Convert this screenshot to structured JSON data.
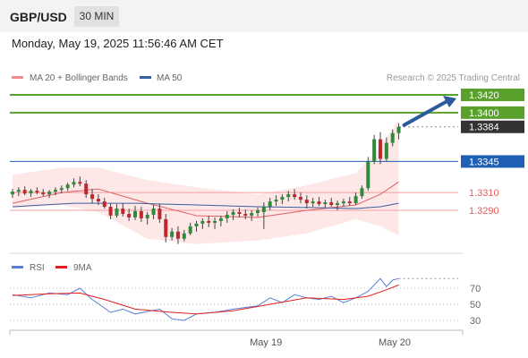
{
  "header": {
    "symbol": "GBP/USD",
    "timeframe": "30 MIN",
    "datetime": "Monday, May 19, 2025 11:56:46 AM CET"
  },
  "legend": {
    "bollinger": {
      "label": "MA 20 + Bollinger Bands",
      "color": "#f48a8a"
    },
    "ma50": {
      "label": "MA 50",
      "color": "#3a5f9e"
    },
    "copyright": "Research © 2025 Trading Central"
  },
  "rsi_legend": {
    "rsi": {
      "label": "RSI",
      "color": "#5b7fd6"
    },
    "ma9": {
      "label": "9MA",
      "color": "#e02020"
    }
  },
  "colors": {
    "green": "#5aa02c",
    "blue": "#1f5fb4",
    "red": "#e06060",
    "bull": "#2f8a3a",
    "bear": "#c0272d",
    "current": "#333333",
    "arrow": "#2b5a9a"
  },
  "chart_data": {
    "type": "candlestick",
    "price_levels": [
      {
        "value": 1.342,
        "label": "1.3420",
        "kind": "target"
      },
      {
        "value": 1.34,
        "label": "1.3400",
        "kind": "target"
      },
      {
        "value": 1.3384,
        "label": "1.3384",
        "kind": "current"
      },
      {
        "value": 1.3345,
        "label": "1.3345",
        "kind": "pivot"
      },
      {
        "value": 1.331,
        "label": "1.3310",
        "kind": "support"
      },
      {
        "value": 1.329,
        "label": "1.3290",
        "kind": "support"
      }
    ],
    "ohlc": [
      [
        1.3308,
        1.3314,
        1.3304,
        1.3311
      ],
      [
        1.3311,
        1.3316,
        1.3306,
        1.3313
      ],
      [
        1.3313,
        1.3317,
        1.3307,
        1.3309
      ],
      [
        1.3309,
        1.3314,
        1.3305,
        1.3312
      ],
      [
        1.3312,
        1.3316,
        1.3308,
        1.331
      ],
      [
        1.331,
        1.3314,
        1.3306,
        1.3308
      ],
      [
        1.3308,
        1.3313,
        1.3304,
        1.3311
      ],
      [
        1.3311,
        1.3316,
        1.3307,
        1.3313
      ],
      [
        1.3313,
        1.3318,
        1.3309,
        1.3315
      ],
      [
        1.3315,
        1.3321,
        1.3312,
        1.3319
      ],
      [
        1.3319,
        1.3326,
        1.3316,
        1.3322
      ],
      [
        1.3322,
        1.3328,
        1.3317,
        1.332
      ],
      [
        1.332,
        1.3324,
        1.3304,
        1.3308
      ],
      [
        1.3308,
        1.3314,
        1.3298,
        1.3303
      ],
      [
        1.3303,
        1.3308,
        1.3296,
        1.33
      ],
      [
        1.33,
        1.3304,
        1.3292,
        1.3294
      ],
      [
        1.3294,
        1.3298,
        1.328,
        1.3284
      ],
      [
        1.3284,
        1.3297,
        1.3282,
        1.3292
      ],
      [
        1.3292,
        1.3298,
        1.3283,
        1.3286
      ],
      [
        1.3286,
        1.3292,
        1.3278,
        1.3282
      ],
      [
        1.3282,
        1.3295,
        1.3279,
        1.3289
      ],
      [
        1.3289,
        1.3294,
        1.3277,
        1.3281
      ],
      [
        1.3281,
        1.3288,
        1.3274,
        1.3285
      ],
      [
        1.3285,
        1.3296,
        1.328,
        1.3292
      ],
      [
        1.3292,
        1.3297,
        1.3276,
        1.328
      ],
      [
        1.328,
        1.3286,
        1.3254,
        1.326
      ],
      [
        1.326,
        1.327,
        1.3256,
        1.3266
      ],
      [
        1.3266,
        1.3272,
        1.3252,
        1.3258
      ],
      [
        1.3258,
        1.3268,
        1.3255,
        1.3264
      ],
      [
        1.3264,
        1.3276,
        1.3262,
        1.3272
      ],
      [
        1.3272,
        1.3278,
        1.3266,
        1.3275
      ],
      [
        1.3275,
        1.3281,
        1.3269,
        1.3278
      ],
      [
        1.3278,
        1.3284,
        1.3271,
        1.3276
      ],
      [
        1.3276,
        1.3282,
        1.3269,
        1.3278
      ],
      [
        1.3278,
        1.3284,
        1.3272,
        1.3281
      ],
      [
        1.3281,
        1.3289,
        1.3276,
        1.3285
      ],
      [
        1.3285,
        1.3291,
        1.3279,
        1.3288
      ],
      [
        1.3288,
        1.3293,
        1.3282,
        1.3286
      ],
      [
        1.3286,
        1.3291,
        1.328,
        1.3284
      ],
      [
        1.3284,
        1.329,
        1.3278,
        1.3287
      ],
      [
        1.3287,
        1.3293,
        1.3283,
        1.329
      ],
      [
        1.3288,
        1.3299,
        1.3269,
        1.3294
      ],
      [
        1.3294,
        1.3304,
        1.329,
        1.33
      ],
      [
        1.33,
        1.3307,
        1.3295,
        1.3302
      ],
      [
        1.3302,
        1.3308,
        1.3297,
        1.3305
      ],
      [
        1.3305,
        1.3312,
        1.33,
        1.3308
      ],
      [
        1.3308,
        1.3314,
        1.3302,
        1.3305
      ],
      [
        1.3305,
        1.331,
        1.3298,
        1.3302
      ],
      [
        1.3302,
        1.3307,
        1.3292,
        1.3298
      ],
      [
        1.3298,
        1.3304,
        1.3294,
        1.33
      ],
      [
        1.33,
        1.3305,
        1.3295,
        1.3297
      ],
      [
        1.3297,
        1.3302,
        1.3292,
        1.3299
      ],
      [
        1.3299,
        1.3304,
        1.3294,
        1.3296
      ],
      [
        1.3296,
        1.3301,
        1.329,
        1.3298
      ],
      [
        1.3298,
        1.3303,
        1.3294,
        1.33
      ],
      [
        1.33,
        1.3305,
        1.3295,
        1.3298
      ],
      [
        1.3298,
        1.331,
        1.3296,
        1.3306
      ],
      [
        1.3306,
        1.3318,
        1.3303,
        1.3315
      ],
      [
        1.3315,
        1.335,
        1.3312,
        1.3345
      ],
      [
        1.3345,
        1.3375,
        1.3342,
        1.337
      ],
      [
        1.337,
        1.3378,
        1.3342,
        1.3348
      ],
      [
        1.3348,
        1.3372,
        1.3345,
        1.3366
      ],
      [
        1.3366,
        1.3381,
        1.3362,
        1.3377
      ],
      [
        1.3377,
        1.3388,
        1.337,
        1.3384
      ]
    ],
    "bollinger_upper": [
      [
        0,
        1.333
      ],
      [
        8,
        1.3338
      ],
      [
        14,
        1.3338
      ],
      [
        22,
        1.3324
      ],
      [
        30,
        1.3316
      ],
      [
        40,
        1.3308
      ],
      [
        48,
        1.3318
      ],
      [
        56,
        1.3332
      ],
      [
        60,
        1.3362
      ],
      [
        63,
        1.3392
      ]
    ],
    "bollinger_lower": [
      [
        0,
        1.3292
      ],
      [
        8,
        1.3296
      ],
      [
        14,
        1.3288
      ],
      [
        22,
        1.3258
      ],
      [
        30,
        1.3252
      ],
      [
        40,
        1.3256
      ],
      [
        48,
        1.3264
      ],
      [
        56,
        1.328
      ],
      [
        60,
        1.3272
      ],
      [
        63,
        1.3262
      ]
    ],
    "ma20": [
      [
        0,
        1.3298
      ],
      [
        8,
        1.331
      ],
      [
        14,
        1.3314
      ],
      [
        22,
        1.3298
      ],
      [
        30,
        1.3284
      ],
      [
        40,
        1.3282
      ],
      [
        48,
        1.329
      ],
      [
        56,
        1.3296
      ],
      [
        60,
        1.3308
      ],
      [
        63,
        1.3322
      ]
    ],
    "ma50": [
      [
        0,
        1.3294
      ],
      [
        10,
        1.3298
      ],
      [
        20,
        1.3298
      ],
      [
        30,
        1.3296
      ],
      [
        40,
        1.3294
      ],
      [
        50,
        1.3293
      ],
      [
        56,
        1.3292
      ],
      [
        60,
        1.3294
      ],
      [
        63,
        1.3298
      ]
    ],
    "rsi": [
      [
        0,
        62
      ],
      [
        3,
        58
      ],
      [
        6,
        64
      ],
      [
        9,
        62
      ],
      [
        11,
        70
      ],
      [
        13,
        56
      ],
      [
        16,
        40
      ],
      [
        18,
        44
      ],
      [
        20,
        38
      ],
      [
        24,
        44
      ],
      [
        26,
        32
      ],
      [
        28,
        30
      ],
      [
        30,
        38
      ],
      [
        33,
        40
      ],
      [
        36,
        44
      ],
      [
        40,
        48
      ],
      [
        42,
        58
      ],
      [
        44,
        52
      ],
      [
        46,
        62
      ],
      [
        48,
        58
      ],
      [
        50,
        56
      ],
      [
        52,
        60
      ],
      [
        54,
        52
      ],
      [
        56,
        58
      ],
      [
        58,
        66
      ],
      [
        60,
        82
      ],
      [
        61,
        72
      ],
      [
        62,
        80
      ],
      [
        63,
        82
      ]
    ],
    "rsi_ma": [
      [
        0,
        61
      ],
      [
        6,
        63
      ],
      [
        11,
        64
      ],
      [
        15,
        56
      ],
      [
        20,
        44
      ],
      [
        26,
        40
      ],
      [
        30,
        38
      ],
      [
        36,
        42
      ],
      [
        42,
        50
      ],
      [
        48,
        58
      ],
      [
        54,
        56
      ],
      [
        58,
        60
      ],
      [
        61,
        68
      ],
      [
        63,
        74
      ]
    ],
    "rsi_ticks": [
      "70",
      "50",
      "30"
    ],
    "x_labels": [
      {
        "index": 39,
        "label": "May 19"
      },
      {
        "index": 60,
        "label": "May 20"
      }
    ]
  }
}
